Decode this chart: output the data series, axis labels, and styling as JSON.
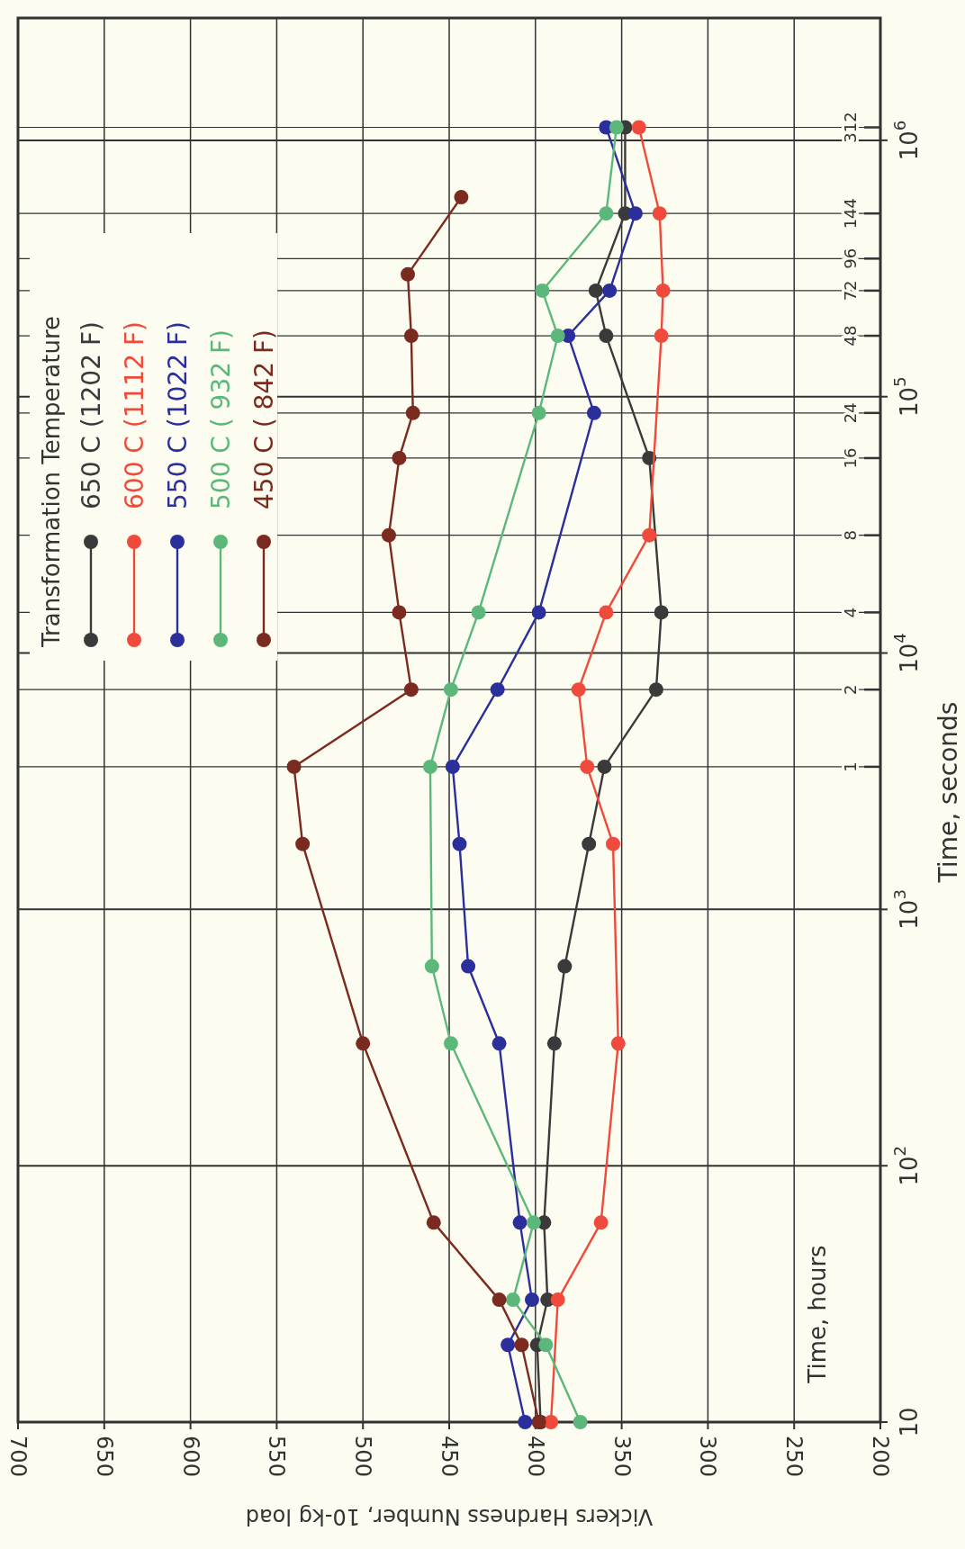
{
  "chart_data": {
    "type": "line",
    "xlabel": "Vickers Hardness Number, 10-kg load",
    "ylabel": "Time, seconds",
    "annotations": [
      "Time, hours",
      {
        "text": "1",
        "y": 3600
      },
      {
        "text": "2",
        "y": 7200
      },
      {
        "text": "4",
        "y": 14400
      },
      {
        "text": "8",
        "y": 28800
      },
      {
        "text": "16",
        "y": 57600
      },
      {
        "text": "24",
        "y": 86400
      },
      {
        "text": "48",
        "y": 172800
      },
      {
        "text": "72",
        "y": 259200
      },
      {
        "text": "96",
        "y": 345600
      },
      {
        "text": "144",
        "y": 518400
      },
      {
        "text": "312",
        "y": 1123200
      }
    ],
    "legend_title": "Transformation Temperature",
    "log": "y",
    "xlim": [
      700,
      200
    ],
    "xticks": [
      700,
      650,
      600,
      550,
      500,
      450,
      400,
      350,
      300,
      250,
      200
    ],
    "ylim": [
      10,
      3000000
    ],
    "yticks": [
      10,
      {
        "value": 100,
        "label": "10$^{2}$"
      },
      {
        "value": 1000,
        "label": "10$^{3}$"
      },
      {
        "value": 10000,
        "label": "10$^{4}$"
      },
      {
        "value": 100000,
        "label": "10$^{5}$"
      },
      {
        "value": 1000000,
        "label": "10$^{6}$"
      }
    ],
    "ref_lines": [
      {
        "axis": "y",
        "value": 3600
      },
      {
        "axis": "y",
        "value": 7200
      },
      {
        "axis": "y",
        "value": 14400
      },
      {
        "axis": "y",
        "value": 28800
      },
      {
        "axis": "y",
        "value": 57600
      },
      {
        "axis": "y",
        "value": 86400
      },
      {
        "axis": "y",
        "value": 172800
      },
      {
        "axis": "y",
        "value": 259200
      },
      {
        "axis": "y",
        "value": 345600
      },
      {
        "axis": "y",
        "value": 518400
      },
      {
        "axis": "y",
        "value": 1123200
      }
    ],
    "grid": true,
    "legend": "top left",
    "marker": "circle",
    "line_style": "solid",
    "series": [
      {
        "name": "650 C (1202 F)",
        "color": "#3a3a3a",
        "x": [
          397,
          399,
          393,
          395,
          389,
          383,
          369,
          360,
          330,
          327,
          334,
          359,
          365,
          348,
          348
        ],
        "values": [
          10,
          20,
          30,
          60,
          300,
          600,
          1800,
          3600,
          7200,
          14400,
          57600,
          172800,
          259200,
          518400,
          1123200
        ]
      },
      {
        "name": "600 C (1112 F)",
        "color": "#f04a3c",
        "x": [
          391,
          387,
          362,
          352,
          355,
          370,
          375,
          359,
          334,
          327,
          326,
          328,
          340
        ],
        "values": [
          10,
          30,
          60,
          300,
          1800,
          3600,
          7200,
          14400,
          28800,
          172800,
          259200,
          518400,
          1123200
        ]
      },
      {
        "name": "550 C (1022 F)",
        "color": "#2b2f9c",
        "x": [
          406,
          416,
          402,
          409,
          421,
          439,
          444,
          448,
          422,
          398,
          366,
          381,
          357,
          342,
          359
        ],
        "values": [
          10,
          20,
          30,
          60,
          300,
          600,
          1800,
          3600,
          7200,
          14400,
          86400,
          172800,
          259200,
          518400,
          1123200
        ]
      },
      {
        "name": "500 C ( 932 F)",
        "color": "#5cb87a",
        "x": [
          374,
          394,
          413,
          401,
          449,
          460,
          461,
          449,
          433,
          398,
          387,
          396,
          359,
          353
        ],
        "values": [
          10,
          20,
          30,
          60,
          300,
          600,
          3600,
          7200,
          14400,
          86400,
          172800,
          259200,
          518400,
          1123200
        ]
      },
      {
        "name": "450 C ( 842 F)",
        "color": "#7a2a1e",
        "x": [
          398,
          408,
          421,
          459,
          500,
          535,
          540,
          472,
          479,
          485,
          479,
          471,
          472,
          474,
          443
        ],
        "values": [
          10,
          20,
          30,
          60,
          300,
          1800,
          3600,
          7200,
          14400,
          28800,
          57600,
          86400,
          172800,
          300000,
          600000
        ]
      }
    ]
  }
}
